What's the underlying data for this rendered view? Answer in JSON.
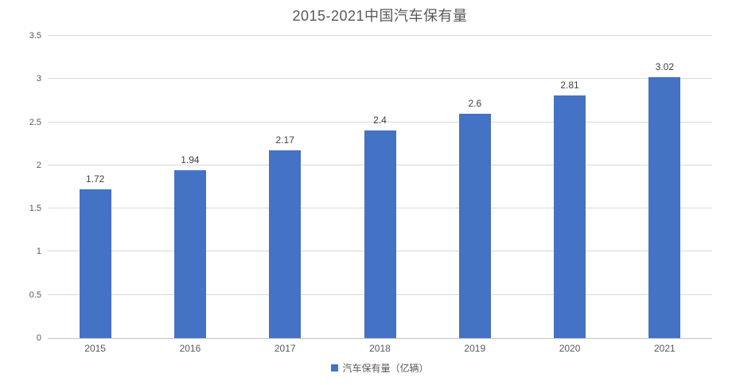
{
  "chart_data": {
    "type": "bar",
    "title": "2015-2021中国汽车保有量",
    "categories": [
      "2015",
      "2016",
      "2017",
      "2018",
      "2019",
      "2020",
      "2021"
    ],
    "values": [
      1.72,
      1.94,
      2.17,
      2.4,
      2.6,
      2.81,
      3.02
    ],
    "data_labels": [
      "1.72",
      "1.94",
      "2.17",
      "2.4",
      "2.6",
      "2.81",
      "3.02"
    ],
    "series_name": "汽车保有量（亿辆）",
    "legend": "汽车保有量（亿辆）",
    "legend_position": "bottom",
    "xlabel": "",
    "ylabel": "",
    "ylim": [
      0,
      3.5
    ],
    "ytick_step": 0.5,
    "yticks": [
      "0",
      "0.5",
      "1",
      "1.5",
      "2",
      "2.5",
      "3",
      "3.5"
    ],
    "grid": true,
    "colors": {
      "bar": "#4472c4",
      "gridline": "#d9d9d9",
      "axis_line": "#c3c3c3",
      "axis_text": "#595959",
      "title_text": "#595959",
      "data_label_text": "#404040",
      "background": "#ffffff"
    }
  }
}
